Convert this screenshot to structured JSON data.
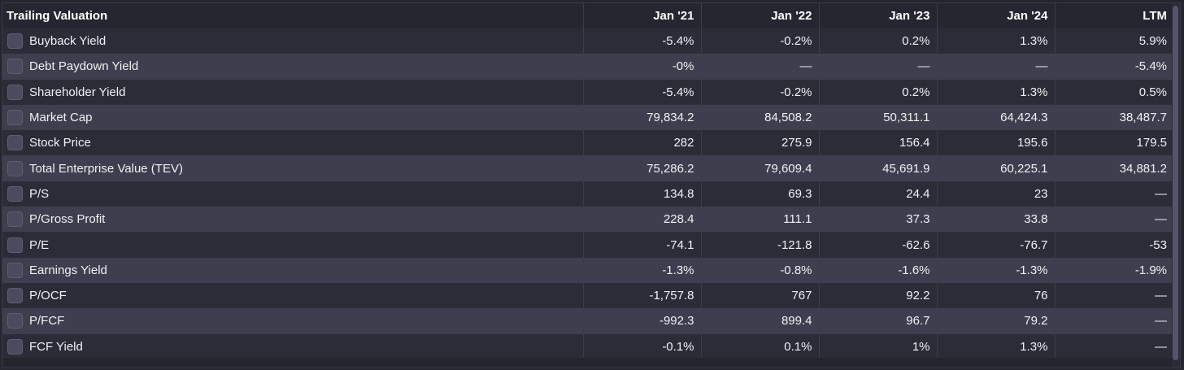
{
  "table": {
    "header": {
      "label": "Trailing Valuation",
      "columns": [
        "Jan '21",
        "Jan '22",
        "Jan '23",
        "Jan '24",
        "LTM"
      ]
    },
    "rows": [
      {
        "label": "Buyback Yield",
        "values": [
          "-5.4%",
          "-0.2%",
          "0.2%",
          "1.3%",
          "5.9%"
        ]
      },
      {
        "label": "Debt Paydown Yield",
        "values": [
          "-0%",
          "—",
          "—",
          "—",
          "-5.4%"
        ]
      },
      {
        "label": "Shareholder Yield",
        "values": [
          "-5.4%",
          "-0.2%",
          "0.2%",
          "1.3%",
          "0.5%"
        ]
      },
      {
        "label": "Market Cap",
        "values": [
          "79,834.2",
          "84,508.2",
          "50,311.1",
          "64,424.3",
          "38,487.7"
        ]
      },
      {
        "label": "Stock Price",
        "values": [
          "282",
          "275.9",
          "156.4",
          "195.6",
          "179.5"
        ]
      },
      {
        "label": "Total Enterprise Value (TEV)",
        "values": [
          "75,286.2",
          "79,609.4",
          "45,691.9",
          "60,225.1",
          "34,881.2"
        ]
      },
      {
        "label": "P/S",
        "values": [
          "134.8",
          "69.3",
          "24.4",
          "23",
          "—"
        ]
      },
      {
        "label": "P/Gross Profit",
        "values": [
          "228.4",
          "111.1",
          "37.3",
          "33.8",
          "—"
        ]
      },
      {
        "label": "P/E",
        "values": [
          "-74.1",
          "-121.8",
          "-62.6",
          "-76.7",
          "-53"
        ]
      },
      {
        "label": "Earnings Yield",
        "values": [
          "-1.3%",
          "-0.8%",
          "-1.6%",
          "-1.3%",
          "-1.9%"
        ]
      },
      {
        "label": "P/OCF",
        "values": [
          "-1,757.8",
          "767",
          "92.2",
          "76",
          "—"
        ]
      },
      {
        "label": "P/FCF",
        "values": [
          "-992.3",
          "899.4",
          "96.7",
          "79.2",
          "—"
        ]
      },
      {
        "label": "FCF Yield",
        "values": [
          "-0.1%",
          "0.1%",
          "1%",
          "1.3%",
          "—"
        ]
      }
    ]
  },
  "colors": {
    "background": "#25252f",
    "row_dark": "#2c2c39",
    "row_light": "#3e3e4e",
    "checkbox": "#4b4b5d"
  }
}
